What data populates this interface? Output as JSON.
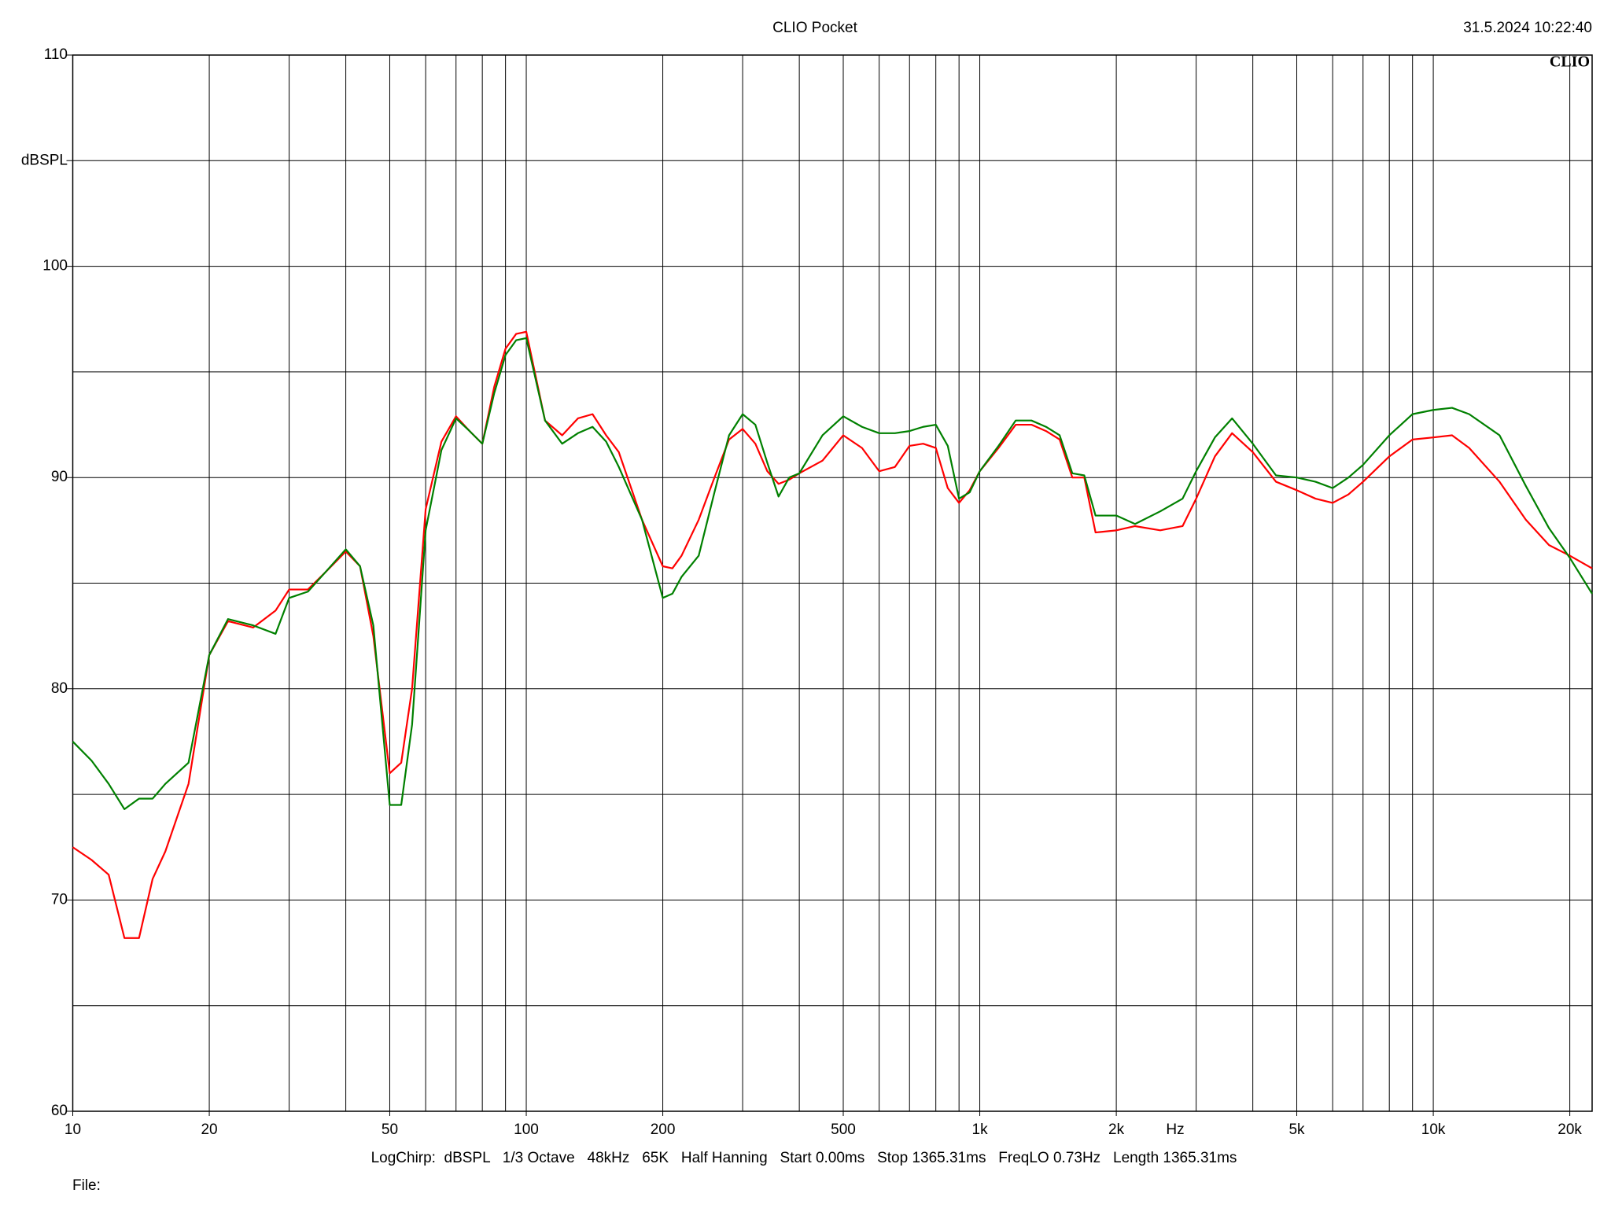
{
  "chart_data": {
    "type": "line",
    "title": "CLIO Pocket",
    "timestamp": "31.5.2024 10:22:40",
    "logo": "CLIO",
    "xlabel": "Hz",
    "footer": "LogChirp:  dBSPL   1/3 Octave   48kHz   65K   Half Hanning   Start 0.00ms   Stop 1365.31ms   FreqLO 0.73Hz   Length 1365.31ms",
    "file_label": "File:",
    "log_x": true,
    "grid": true,
    "xlim": [
      10,
      22400
    ],
    "ylim": [
      60,
      110
    ],
    "xticks": [
      10,
      20,
      50,
      100,
      200,
      500,
      {
        "value": 1000,
        "label": "1k"
      },
      {
        "value": 2000,
        "label": "2k"
      },
      {
        "value": 5000,
        "label": "5k"
      },
      {
        "value": 10000,
        "label": "10k"
      },
      {
        "value": 20000,
        "label": "20k"
      }
    ],
    "xgrid_minor": [
      30,
      40,
      60,
      70,
      80,
      90,
      300,
      400,
      600,
      700,
      800,
      900,
      3000,
      4000,
      6000,
      7000,
      8000,
      9000
    ],
    "yticks": [
      60,
      70,
      80,
      90,
      100,
      {
        "value": 105,
        "label": "dBSPL"
      },
      110
    ],
    "ygrid_minor": [
      65,
      75,
      85,
      95
    ],
    "x": [
      10,
      11,
      12,
      13,
      14,
      15,
      16,
      18,
      20,
      22,
      25,
      28,
      30,
      33,
      36,
      40,
      43,
      46,
      50,
      53,
      56,
      60,
      65,
      70,
      75,
      80,
      85,
      90,
      95,
      100,
      110,
      120,
      130,
      140,
      150,
      160,
      180,
      200,
      210,
      220,
      240,
      260,
      280,
      300,
      320,
      340,
      360,
      380,
      400,
      450,
      500,
      550,
      600,
      650,
      700,
      750,
      800,
      850,
      900,
      950,
      1000,
      1100,
      1200,
      1300,
      1400,
      1500,
      1600,
      1700,
      1800,
      2000,
      2200,
      2500,
      2800,
      3000,
      3300,
      3600,
      4000,
      4500,
      5000,
      5500,
      6000,
      6500,
      7000,
      8000,
      9000,
      10000,
      11000,
      12000,
      14000,
      16000,
      18000,
      20000,
      22400
    ],
    "series": [
      {
        "color": "#ff0000",
        "values": [
          72.5,
          71.9,
          71.2,
          68.2,
          68.2,
          71.0,
          72.3,
          75.5,
          81.6,
          83.2,
          82.9,
          83.7,
          84.7,
          84.7,
          85.5,
          86.5,
          85.8,
          82.5,
          76.0,
          76.5,
          80.0,
          88.5,
          91.7,
          92.9,
          92.2,
          91.6,
          94.3,
          96.1,
          96.8,
          96.9,
          92.7,
          92.0,
          92.8,
          93.0,
          92.0,
          91.2,
          88.0,
          85.8,
          85.7,
          86.3,
          88.0,
          90.0,
          91.8,
          92.3,
          91.6,
          90.3,
          89.7,
          89.9,
          90.2,
          90.8,
          92.0,
          91.4,
          90.3,
          90.5,
          91.5,
          91.6,
          91.4,
          89.5,
          88.8,
          89.4,
          90.3,
          91.4,
          92.5,
          92.5,
          92.2,
          91.8,
          90.0,
          90.0,
          87.4,
          87.5,
          87.7,
          87.5,
          87.7,
          89.0,
          91.0,
          92.1,
          91.2,
          89.8,
          89.4,
          89.0,
          88.8,
          89.2,
          89.8,
          91.0,
          91.8,
          91.9,
          92.0,
          91.4,
          89.8,
          88.0,
          86.8,
          86.3,
          85.7
        ]
      },
      {
        "color": "#008000",
        "values": [
          77.5,
          76.6,
          75.5,
          74.3,
          74.8,
          74.8,
          75.5,
          76.5,
          81.6,
          83.3,
          83.0,
          82.6,
          84.3,
          84.6,
          85.5,
          86.6,
          85.8,
          83.0,
          74.5,
          74.5,
          78.3,
          87.5,
          91.3,
          92.8,
          92.2,
          91.6,
          94.0,
          95.8,
          96.5,
          96.6,
          92.7,
          91.6,
          92.1,
          92.4,
          91.7,
          90.5,
          88.0,
          84.3,
          84.5,
          85.3,
          86.3,
          89.3,
          92.0,
          93.0,
          92.5,
          90.7,
          89.1,
          90.0,
          90.2,
          92.0,
          92.9,
          92.4,
          92.1,
          92.1,
          92.2,
          92.4,
          92.5,
          91.5,
          89.0,
          89.3,
          90.3,
          91.5,
          92.7,
          92.7,
          92.4,
          92.0,
          90.2,
          90.1,
          88.2,
          88.2,
          87.8,
          88.4,
          89.0,
          90.3,
          91.9,
          92.8,
          91.6,
          90.1,
          90.0,
          89.8,
          89.5,
          90.0,
          90.6,
          92.0,
          93.0,
          93.2,
          93.3,
          93.0,
          92.0,
          89.6,
          87.6,
          86.2,
          84.5
        ]
      }
    ]
  }
}
